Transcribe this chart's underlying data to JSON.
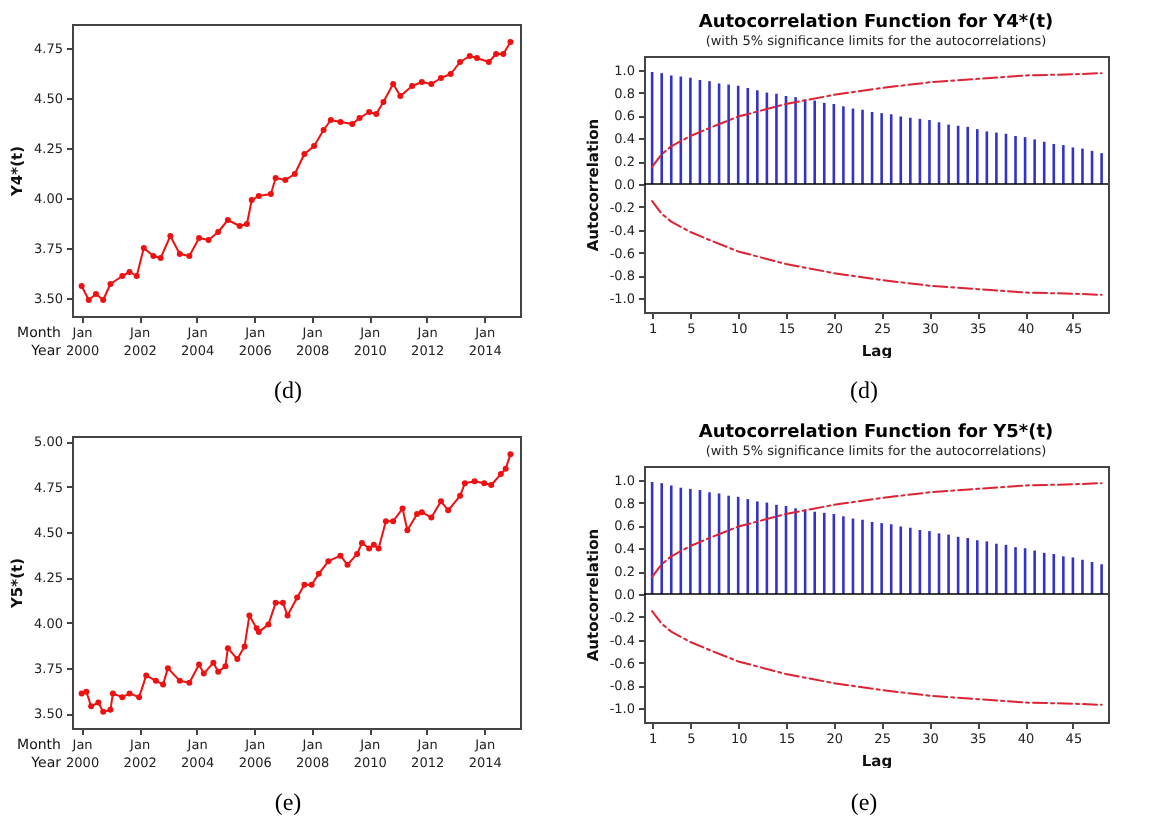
{
  "chart_data": [
    {
      "type": "line",
      "ylabel": "Y4*(t)",
      "annotations": [
        "Month",
        "Year",
        "(d)"
      ],
      "marker": "circle",
      "x": [
        "2000-01",
        "2000-04",
        "2000-07",
        "2000-10",
        "2001-01",
        "2001-06",
        "2001-09",
        "2001-12",
        "2002-03",
        "2002-07",
        "2002-10",
        "2003-02",
        "2003-06",
        "2003-10",
        "2004-02",
        "2004-06",
        "2004-10",
        "2005-02",
        "2005-07",
        "2005-10",
        "2005-12",
        "2006-03",
        "2006-08",
        "2006-10",
        "2007-02",
        "2007-06",
        "2007-10",
        "2008-02",
        "2008-06",
        "2008-09",
        "2009-01",
        "2009-06",
        "2009-09",
        "2010-01",
        "2010-04",
        "2010-07",
        "2010-11",
        "2011-02",
        "2011-07",
        "2011-11",
        "2012-03",
        "2012-07",
        "2012-11",
        "2013-03",
        "2013-07",
        "2013-10",
        "2014-03",
        "2014-06",
        "2014-09",
        "2014-12"
      ],
      "series": [
        {
          "color": "#ee1111",
          "values": [
            3.56,
            3.49,
            3.52,
            3.49,
            3.57,
            3.61,
            3.63,
            3.61,
            3.75,
            3.71,
            3.7,
            3.81,
            3.72,
            3.71,
            3.8,
            3.79,
            3.83,
            3.89,
            3.86,
            3.87,
            3.99,
            4.01,
            4.02,
            4.1,
            4.09,
            4.12,
            4.22,
            4.26,
            4.34,
            4.39,
            4.38,
            4.37,
            4.4,
            4.43,
            4.42,
            4.48,
            4.57,
            4.51,
            4.56,
            4.58,
            4.57,
            4.6,
            4.62,
            4.68,
            4.71,
            4.7,
            4.68,
            4.72,
            4.72,
            4.78
          ]
        }
      ],
      "xlim": [
        "1999-09",
        "2015-04"
      ],
      "xticks": [
        {
          "value": "2000-01",
          "label": "Jan 2000"
        },
        {
          "value": "2002-01",
          "label": "Jan 2002"
        },
        {
          "value": "2004-01",
          "label": "Jan 2004"
        },
        {
          "value": "2006-01",
          "label": "Jan 2006"
        },
        {
          "value": "2008-01",
          "label": "Jan 2008"
        },
        {
          "value": "2010-01",
          "label": "Jan 2010"
        },
        {
          "value": "2012-01",
          "label": "Jan 2012"
        },
        {
          "value": "2014-01",
          "label": "Jan 2014"
        }
      ],
      "ylim": [
        3.41,
        4.87
      ],
      "yticks": [
        {
          "value": 3.5,
          "label": "3.50"
        },
        3.75,
        {
          "value": 4,
          "label": "4.00"
        },
        4.25,
        {
          "value": 4.5,
          "label": "4.50"
        },
        4.75
      ]
    },
    {
      "type": "bar",
      "title": "Autocorrelation Function for Y4*(t)",
      "subtitle": "(with 5% significance limits for the autocorrelations)",
      "xlabel": "Lag",
      "ylabel": "Autocorrelation",
      "annotations": [
        "(d)"
      ],
      "x": [
        1,
        2,
        3,
        4,
        5,
        6,
        7,
        8,
        9,
        10,
        11,
        12,
        13,
        14,
        15,
        16,
        17,
        18,
        19,
        20,
        21,
        22,
        23,
        24,
        25,
        26,
        27,
        28,
        29,
        30,
        31,
        32,
        33,
        34,
        35,
        36,
        37,
        38,
        39,
        40,
        41,
        42,
        43,
        44,
        45,
        46,
        47,
        48
      ],
      "series": [
        {
          "color": "#3333cc",
          "values": [
            0.98,
            0.97,
            0.95,
            0.94,
            0.93,
            0.91,
            0.9,
            0.88,
            0.87,
            0.86,
            0.84,
            0.82,
            0.8,
            0.79,
            0.77,
            0.76,
            0.74,
            0.73,
            0.71,
            0.7,
            0.68,
            0.66,
            0.65,
            0.63,
            0.62,
            0.61,
            0.59,
            0.58,
            0.57,
            0.56,
            0.54,
            0.52,
            0.51,
            0.5,
            0.48,
            0.46,
            0.45,
            0.44,
            0.42,
            0.41,
            0.39,
            0.37,
            0.35,
            0.34,
            0.32,
            0.31,
            0.29,
            0.27
          ]
        },
        {
          "type": "line",
          "color": "#dd2233",
          "line_style": "dashed",
          "x": [
            1,
            2,
            3,
            5,
            7,
            10,
            15,
            20,
            25,
            30,
            35,
            40,
            45,
            48
          ],
          "values": [
            0.15,
            0.26,
            0.33,
            0.42,
            0.49,
            0.59,
            0.7,
            0.78,
            0.84,
            0.89,
            0.92,
            0.95,
            0.96,
            0.97
          ]
        },
        {
          "type": "line",
          "color": "#dd2233",
          "line_style": "dashed",
          "x": [
            1,
            2,
            3,
            5,
            7,
            10,
            15,
            20,
            25,
            30,
            35,
            40,
            45,
            48
          ],
          "values": [
            -0.15,
            -0.26,
            -0.33,
            -0.42,
            -0.49,
            -0.59,
            -0.7,
            -0.78,
            -0.84,
            -0.89,
            -0.92,
            -0.95,
            -0.96,
            -0.97
          ]
        }
      ],
      "ref_lines": [
        {
          "axis": "y",
          "value": 0,
          "color": "#000000"
        }
      ],
      "xlim": [
        0.15,
        48.67
      ],
      "xticks": [
        1,
        5,
        10,
        15,
        20,
        25,
        30,
        35,
        40,
        45
      ],
      "ylim": [
        -1.12,
        1.12
      ],
      "yticks": [
        {
          "value": -1,
          "label": "-1.0"
        },
        -0.8,
        -0.6,
        -0.4,
        -0.2,
        {
          "value": 0,
          "label": "0.0"
        },
        0.2,
        0.4,
        0.6,
        0.8,
        {
          "value": 1,
          "label": "1.0"
        }
      ]
    },
    {
      "type": "line",
      "ylabel": "Y5*(t)",
      "annotations": [
        "Month",
        "Year",
        "(e)"
      ],
      "marker": "circle",
      "x": [
        "2000-01",
        "2000-03",
        "2000-05",
        "2000-08",
        "2000-10",
        "2001-01",
        "2001-02",
        "2001-06",
        "2001-09",
        "2002-01",
        "2002-04",
        "2002-08",
        "2002-11",
        "2003-01",
        "2003-06",
        "2003-10",
        "2004-02",
        "2004-04",
        "2004-08",
        "2004-10",
        "2005-01",
        "2005-02",
        "2005-06",
        "2005-09",
        "2005-11",
        "2006-02",
        "2006-03",
        "2006-07",
        "2006-10",
        "2007-01",
        "2007-03",
        "2007-07",
        "2007-10",
        "2008-01",
        "2008-04",
        "2008-08",
        "2009-01",
        "2009-04",
        "2009-08",
        "2009-10",
        "2010-01",
        "2010-03",
        "2010-05",
        "2010-08",
        "2010-11",
        "2011-03",
        "2011-05",
        "2011-09",
        "2011-11",
        "2012-03",
        "2012-07",
        "2012-10",
        "2013-03",
        "2013-05",
        "2013-09",
        "2014-01",
        "2014-04",
        "2014-08",
        "2014-10",
        "2014-12"
      ],
      "series": [
        {
          "color": "#ee1111",
          "values": [
            3.61,
            3.62,
            3.54,
            3.56,
            3.51,
            3.52,
            3.61,
            3.59,
            3.61,
            3.59,
            3.71,
            3.68,
            3.66,
            3.75,
            3.68,
            3.67,
            3.77,
            3.72,
            3.78,
            3.73,
            3.76,
            3.86,
            3.8,
            3.87,
            4.04,
            3.97,
            3.95,
            3.99,
            4.11,
            4.11,
            4.04,
            4.14,
            4.21,
            4.21,
            4.27,
            4.34,
            4.37,
            4.32,
            4.38,
            4.44,
            4.41,
            4.43,
            4.41,
            4.56,
            4.56,
            4.63,
            4.51,
            4.6,
            4.61,
            4.58,
            4.67,
            4.62,
            4.7,
            4.77,
            4.78,
            4.77,
            4.76,
            4.82,
            4.85,
            4.93
          ]
        }
      ],
      "xlim": [
        "1999-09",
        "2015-04"
      ],
      "xticks": [
        {
          "value": "2000-01",
          "label": "Jan 2000"
        },
        {
          "value": "2002-01",
          "label": "Jan 2002"
        },
        {
          "value": "2004-01",
          "label": "Jan 2004"
        },
        {
          "value": "2006-01",
          "label": "Jan 2006"
        },
        {
          "value": "2008-01",
          "label": "Jan 2008"
        },
        {
          "value": "2010-01",
          "label": "Jan 2010"
        },
        {
          "value": "2012-01",
          "label": "Jan 2012"
        },
        {
          "value": "2014-01",
          "label": "Jan 2014"
        }
      ],
      "ylim": [
        3.42,
        5.03
      ],
      "yticks": [
        {
          "value": 3.5,
          "label": "3.50"
        },
        3.75,
        {
          "value": 4,
          "label": "4.00"
        },
        4.25,
        {
          "value": 4.5,
          "label": "4.50"
        },
        4.75,
        {
          "value": 5,
          "label": "5.00"
        }
      ]
    },
    {
      "type": "bar",
      "title": "Autocorrelation Function for Y5*(t)",
      "subtitle": "(with 5% significance limits for the autocorrelations)",
      "xlabel": "Lag",
      "ylabel": "Autocorrelation",
      "annotations": [
        "(e)"
      ],
      "x": [
        1,
        2,
        3,
        4,
        5,
        6,
        7,
        8,
        9,
        10,
        11,
        12,
        13,
        14,
        15,
        16,
        17,
        18,
        19,
        20,
        21,
        22,
        23,
        24,
        25,
        26,
        27,
        28,
        29,
        30,
        31,
        32,
        33,
        34,
        35,
        36,
        37,
        38,
        39,
        40,
        41,
        42,
        43,
        44,
        45,
        46,
        47,
        48
      ],
      "series": [
        {
          "color": "#3333cc",
          "values": [
            0.98,
            0.97,
            0.95,
            0.93,
            0.92,
            0.91,
            0.89,
            0.88,
            0.86,
            0.85,
            0.83,
            0.81,
            0.8,
            0.78,
            0.77,
            0.75,
            0.74,
            0.72,
            0.71,
            0.7,
            0.68,
            0.66,
            0.65,
            0.63,
            0.62,
            0.61,
            0.59,
            0.58,
            0.56,
            0.55,
            0.53,
            0.52,
            0.5,
            0.49,
            0.47,
            0.46,
            0.44,
            0.43,
            0.41,
            0.4,
            0.38,
            0.36,
            0.35,
            0.33,
            0.32,
            0.3,
            0.28,
            0.26
          ]
        },
        {
          "type": "line",
          "color": "#dd2233",
          "line_style": "dashed",
          "x": [
            1,
            2,
            3,
            5,
            7,
            10,
            15,
            20,
            25,
            30,
            35,
            40,
            45,
            48
          ],
          "values": [
            0.15,
            0.26,
            0.33,
            0.42,
            0.49,
            0.59,
            0.7,
            0.78,
            0.84,
            0.89,
            0.92,
            0.95,
            0.96,
            0.97
          ]
        },
        {
          "type": "line",
          "color": "#dd2233",
          "line_style": "dashed",
          "x": [
            1,
            2,
            3,
            5,
            7,
            10,
            15,
            20,
            25,
            30,
            35,
            40,
            45,
            48
          ],
          "values": [
            -0.15,
            -0.26,
            -0.33,
            -0.42,
            -0.49,
            -0.59,
            -0.7,
            -0.78,
            -0.84,
            -0.89,
            -0.92,
            -0.95,
            -0.96,
            -0.97
          ]
        }
      ],
      "ref_lines": [
        {
          "axis": "y",
          "value": 0,
          "color": "#000000"
        }
      ],
      "xlim": [
        0.15,
        48.67
      ],
      "xticks": [
        1,
        5,
        10,
        15,
        20,
        25,
        30,
        35,
        40,
        45
      ],
      "ylim": [
        -1.12,
        1.12
      ],
      "yticks": [
        {
          "value": -1,
          "label": "-1.0"
        },
        -0.8,
        -0.6,
        -0.4,
        -0.2,
        {
          "value": 0,
          "label": "0.0"
        },
        0.2,
        0.4,
        0.6,
        0.8,
        {
          "value": 1,
          "label": "1.0"
        }
      ]
    }
  ]
}
